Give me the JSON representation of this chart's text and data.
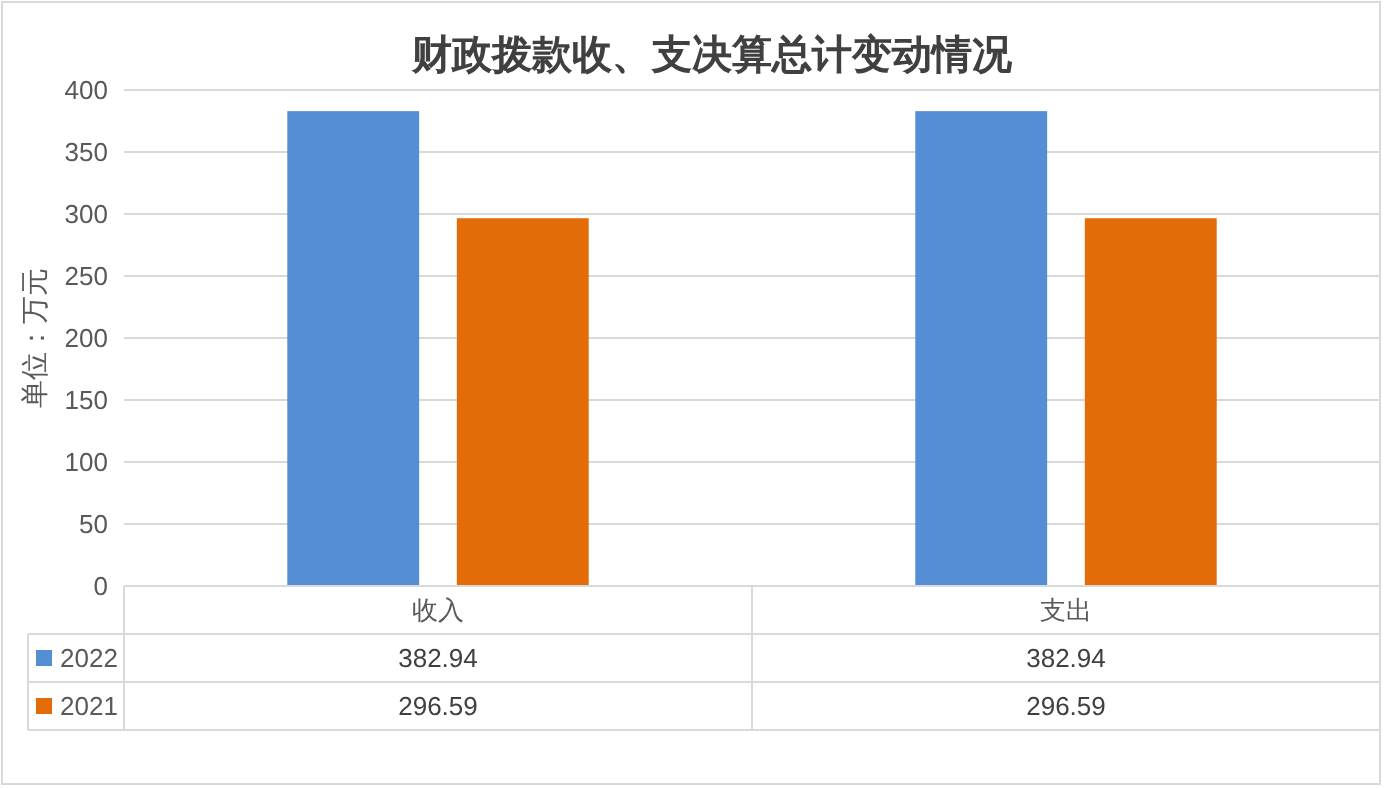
{
  "chart_data": {
    "type": "bar",
    "title": "财政拨款收、支决算总计变动情况",
    "ylabel": "单位：万元",
    "categories": [
      "收入",
      "支出"
    ],
    "series": [
      {
        "name": "2022",
        "color": "#558ed5",
        "values": [
          382.94,
          382.94
        ]
      },
      {
        "name": "2021",
        "color": "#e36c09",
        "values": [
          296.59,
          296.59
        ]
      }
    ],
    "ylim": [
      0,
      400
    ],
    "yticks": [
      0,
      50,
      100,
      150,
      200,
      250,
      300,
      350,
      400
    ],
    "grid": "y",
    "legend": "bottom",
    "data_labels": true
  }
}
